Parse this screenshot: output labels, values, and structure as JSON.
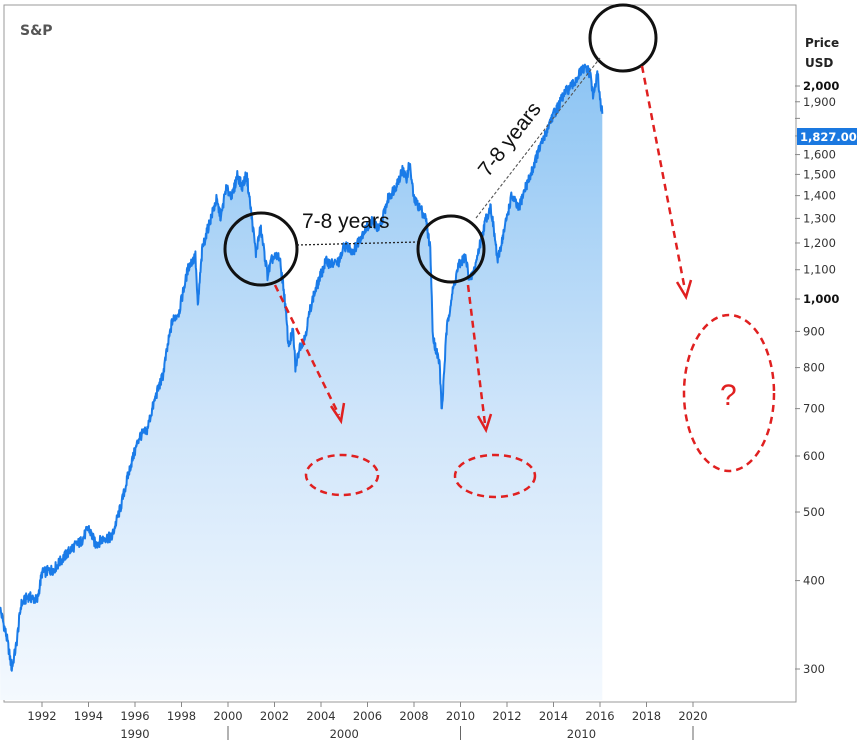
{
  "chart_data": {
    "type": "area",
    "title": "S&P",
    "ylabel_line1": "Price",
    "ylabel_line2": "USD",
    "current_value_label": "1,827.00",
    "current_value": 1827,
    "x_range": [
      1991.0,
      2020.6
    ],
    "y_range": [
      250,
      2150
    ],
    "y_scale": "log",
    "y_ticks": [
      {
        "value": 300,
        "label": "300",
        "bold": false
      },
      {
        "value": 400,
        "label": "400",
        "bold": false
      },
      {
        "value": 500,
        "label": "500",
        "bold": false
      },
      {
        "value": 600,
        "label": "600",
        "bold": false
      },
      {
        "value": 700,
        "label": "700",
        "bold": false
      },
      {
        "value": 800,
        "label": "800",
        "bold": false
      },
      {
        "value": 900,
        "label": "900",
        "bold": false
      },
      {
        "value": 1000,
        "label": "1,000",
        "bold": true
      },
      {
        "value": 1100,
        "label": "1,100",
        "bold": false
      },
      {
        "value": 1200,
        "label": "1,200",
        "bold": false
      },
      {
        "value": 1300,
        "label": "1,300",
        "bold": false
      },
      {
        "value": 1400,
        "label": "1,400",
        "bold": false
      },
      {
        "value": 1500,
        "label": "1,500",
        "bold": false
      },
      {
        "value": 1600,
        "label": "1,600",
        "bold": false
      },
      {
        "value": 1700,
        "label": "1,700",
        "bold": false
      },
      {
        "value": 1800,
        "label": "1,800",
        "bold": false
      },
      {
        "value": 1900,
        "label": "1,900",
        "bold": false
      },
      {
        "value": 2000,
        "label": "2,000",
        "bold": true
      }
    ],
    "x_ticks": [
      {
        "value": 1992,
        "label": "1992"
      },
      {
        "value": 1994,
        "label": "1994"
      },
      {
        "value": 1996,
        "label": "1996"
      },
      {
        "value": 1998,
        "label": "1998"
      },
      {
        "value": 2000,
        "label": "2000"
      },
      {
        "value": 2002,
        "label": "2002"
      },
      {
        "value": 2004,
        "label": "2004"
      },
      {
        "value": 2006,
        "label": "2006"
      },
      {
        "value": 2008,
        "label": "2008"
      },
      {
        "value": 2010,
        "label": "2010"
      },
      {
        "value": 2012,
        "label": "2012"
      },
      {
        "value": 2014,
        "label": "2014"
      },
      {
        "value": 2016,
        "label": "2016"
      },
      {
        "value": 2018,
        "label": "2018"
      },
      {
        "value": 2020,
        "label": "2020"
      }
    ],
    "x_decades": [
      {
        "value": 1990,
        "label": "1990",
        "label_at": 1996.0
      },
      {
        "value": 2000,
        "label": "2000",
        "label_at": 2005.0
      },
      {
        "value": 2010,
        "label": "2010",
        "label_at": 2015.2
      }
    ],
    "decade_separators": [
      2000.0,
      2010.0,
      2020.0
    ],
    "series": [
      {
        "color": "#1a7be8",
        "points": [
          [
            1990.2,
            365
          ],
          [
            1990.5,
            330
          ],
          [
            1990.7,
            300
          ],
          [
            1990.9,
            325
          ],
          [
            1991.1,
            370
          ],
          [
            1991.4,
            380
          ],
          [
            1991.8,
            375
          ],
          [
            1992.0,
            410
          ],
          [
            1992.5,
            415
          ],
          [
            1992.9,
            430
          ],
          [
            1993.3,
            445
          ],
          [
            1993.7,
            455
          ],
          [
            1994.0,
            475
          ],
          [
            1994.3,
            450
          ],
          [
            1994.7,
            460
          ],
          [
            1995.0,
            460
          ],
          [
            1995.4,
            510
          ],
          [
            1995.8,
            580
          ],
          [
            1996.2,
            640
          ],
          [
            1996.5,
            650
          ],
          [
            1996.9,
            730
          ],
          [
            1997.2,
            780
          ],
          [
            1997.6,
            930
          ],
          [
            1997.9,
            960
          ],
          [
            1998.3,
            1110
          ],
          [
            1998.6,
            1150
          ],
          [
            1998.7,
            970
          ],
          [
            1998.9,
            1180
          ],
          [
            1999.2,
            1280
          ],
          [
            1999.5,
            1380
          ],
          [
            1999.7,
            1300
          ],
          [
            1999.9,
            1430
          ],
          [
            2000.2,
            1400
          ],
          [
            2000.4,
            1500
          ],
          [
            2000.6,
            1440
          ],
          [
            2000.8,
            1500
          ],
          [
            2001.0,
            1320
          ],
          [
            2001.2,
            1160
          ],
          [
            2001.4,
            1260
          ],
          [
            2001.7,
            1080
          ],
          [
            2001.9,
            1140
          ],
          [
            2002.2,
            1150
          ],
          [
            2002.4,
            1030
          ],
          [
            2002.6,
            860
          ],
          [
            2002.8,
            900
          ],
          [
            2002.9,
            800
          ],
          [
            2003.1,
            860
          ],
          [
            2003.3,
            880
          ],
          [
            2003.6,
            990
          ],
          [
            2003.9,
            1060
          ],
          [
            2004.2,
            1130
          ],
          [
            2004.5,
            1120
          ],
          [
            2004.8,
            1130
          ],
          [
            2005.0,
            1190
          ],
          [
            2005.4,
            1170
          ],
          [
            2005.8,
            1240
          ],
          [
            2006.2,
            1290
          ],
          [
            2006.5,
            1250
          ],
          [
            2006.9,
            1390
          ],
          [
            2007.2,
            1440
          ],
          [
            2007.5,
            1520
          ],
          [
            2007.7,
            1480
          ],
          [
            2007.8,
            1560
          ],
          [
            2008.0,
            1380
          ],
          [
            2008.3,
            1340
          ],
          [
            2008.5,
            1300
          ],
          [
            2008.7,
            1180
          ],
          [
            2008.8,
            900
          ],
          [
            2008.9,
            860
          ],
          [
            2009.1,
            810
          ],
          [
            2009.2,
            690
          ],
          [
            2009.4,
            900
          ],
          [
            2009.6,
            1000
          ],
          [
            2009.9,
            1110
          ],
          [
            2010.2,
            1150
          ],
          [
            2010.4,
            1060
          ],
          [
            2010.6,
            1100
          ],
          [
            2010.8,
            1180
          ],
          [
            2011.1,
            1300
          ],
          [
            2011.3,
            1350
          ],
          [
            2011.6,
            1130
          ],
          [
            2011.9,
            1260
          ],
          [
            2012.2,
            1400
          ],
          [
            2012.5,
            1340
          ],
          [
            2012.8,
            1440
          ],
          [
            2013.0,
            1490
          ],
          [
            2013.3,
            1600
          ],
          [
            2013.6,
            1690
          ],
          [
            2013.9,
            1800
          ],
          [
            2014.2,
            1870
          ],
          [
            2014.5,
            1960
          ],
          [
            2014.8,
            2000
          ],
          [
            2015.0,
            2050
          ],
          [
            2015.2,
            2100
          ],
          [
            2015.4,
            2120
          ],
          [
            2015.6,
            2070
          ],
          [
            2015.7,
            1930
          ],
          [
            2015.9,
            2080
          ],
          [
            2016.0,
            1920
          ],
          [
            2016.1,
            1827
          ]
        ]
      }
    ],
    "annotations": [
      {
        "kind": "label",
        "text": "7-8 years"
      },
      {
        "kind": "label",
        "text": "7-8 years"
      },
      {
        "kind": "label",
        "text": "?"
      }
    ]
  }
}
